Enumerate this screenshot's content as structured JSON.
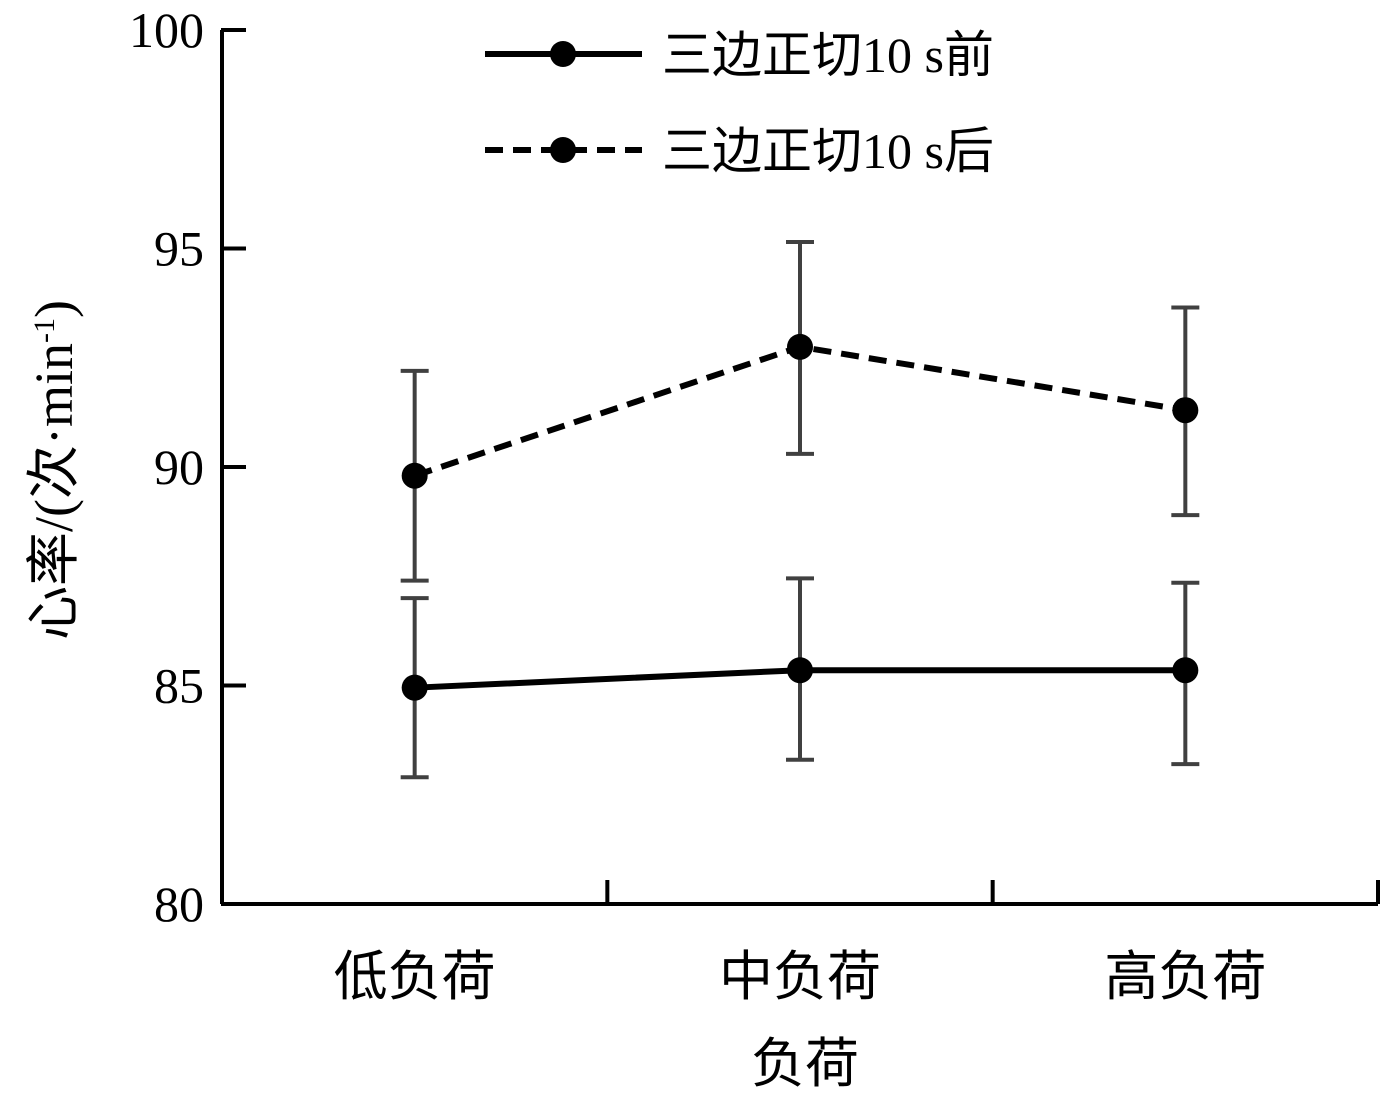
{
  "chart_data": {
    "type": "line",
    "xlabel": "负荷",
    "ylabel": "心率/(次·min",
    "ylabel_sup": "-1",
    "ylabel_close": ")",
    "categories": [
      "低负荷",
      "中负荷",
      "高负荷"
    ],
    "ylim": [
      80,
      100
    ],
    "yticks": [
      "80",
      "85",
      "90",
      "95",
      "100"
    ],
    "legend_position": "top-center",
    "series": [
      {
        "name": "三边正切10 s前",
        "style": "solid",
        "values": [
          84.95,
          85.35,
          85.35
        ],
        "err_low": [
          82.9,
          83.3,
          83.2
        ],
        "err_high": [
          87.0,
          87.45,
          87.35
        ]
      },
      {
        "name": "三边正切10 s后",
        "style": "dashed",
        "values": [
          89.8,
          92.75,
          91.3
        ],
        "err_low": [
          87.4,
          90.3,
          88.9
        ],
        "err_high": [
          92.2,
          95.15,
          93.65
        ]
      }
    ],
    "colors": {
      "line": "#000000",
      "errorbar": "#404040",
      "axis": "#000000"
    }
  }
}
